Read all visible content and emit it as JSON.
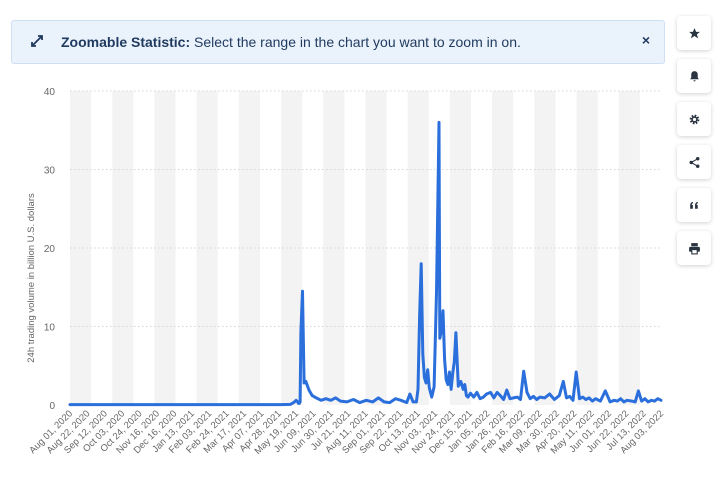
{
  "banner": {
    "title": "Zoomable Statistic:",
    "text": " Select the range in the chart you want to zoom in on.",
    "close_label": "×"
  },
  "toolbar": {
    "icons": [
      "star-icon",
      "bell-icon",
      "gear-icon",
      "share-icon",
      "quote-icon",
      "print-icon"
    ]
  },
  "colors": {
    "line": "#2a6fdb",
    "band": "#f3f3f3",
    "grid": "#d5d5d5",
    "text": "#666666"
  },
  "chart_data": {
    "type": "line",
    "ylabel": "24h trading volume in billion U.S. dollars",
    "xlabel": "",
    "title": "",
    "ylim": [
      0,
      40
    ],
    "yticks": [
      0,
      10,
      20,
      30,
      40
    ],
    "x_start": "2020-08-01",
    "x_end": "2022-08-03",
    "xtick_labels": [
      "Aug 01, 2020",
      "Aug 22, 2020",
      "Sep 12, 2020",
      "Oct 03, 2020",
      "Oct 24, 2020",
      "Nov 16, 2020",
      "Dec 16, 2020",
      "Jan 13, 2021",
      "Feb 03, 2021",
      "Feb 24, 2021",
      "Mar 17, 2021",
      "Apr 07, 2021",
      "Apr 28, 2021",
      "May 19, 2021",
      "Jun 09, 2021",
      "Jun 30, 2021",
      "Jul 21, 2021",
      "Aug 11, 2021",
      "Sep 01, 2021",
      "Sep 22, 2021",
      "Oct 13, 2021",
      "Nov 03, 2021",
      "Nov 24, 2021",
      "Dec 15, 2021",
      "Jan 05, 2022",
      "Jan 26, 2022",
      "Feb 16, 2022",
      "Mar 09, 2022",
      "Mar 30, 2022",
      "Apr 20, 2022",
      "May 11, 2022",
      "Jun 01, 2022",
      "Jun 22, 2022",
      "Jul 13, 2022",
      "Aug 03, 2022"
    ],
    "series": [
      {
        "x": [
          "2020-08-01",
          "2020-10-01",
          "2020-12-01",
          "2021-02-01",
          "2021-04-01",
          "2021-04-20",
          "2021-05-01",
          "2021-05-05",
          "2021-05-08",
          "2021-05-10",
          "2021-05-11",
          "2021-05-12",
          "2021-05-13",
          "2021-05-14",
          "2021-05-16",
          "2021-05-18",
          "2021-05-20",
          "2021-05-24",
          "2021-05-28",
          "2021-06-02",
          "2021-06-08",
          "2021-06-14",
          "2021-06-20",
          "2021-06-26",
          "2021-07-02",
          "2021-07-10",
          "2021-07-18",
          "2021-07-26",
          "2021-08-03",
          "2021-08-11",
          "2021-08-18",
          "2021-08-25",
          "2021-09-01",
          "2021-09-08",
          "2021-09-15",
          "2021-09-22",
          "2021-09-26",
          "2021-09-30",
          "2021-10-04",
          "2021-10-06",
          "2021-10-08",
          "2021-10-10",
          "2021-10-12",
          "2021-10-14",
          "2021-10-16",
          "2021-10-18",
          "2021-10-20",
          "2021-10-23",
          "2021-10-26",
          "2021-10-29",
          "2021-11-01",
          "2021-11-02",
          "2021-11-04",
          "2021-11-06",
          "2021-11-08",
          "2021-11-10",
          "2021-11-12",
          "2021-11-14",
          "2021-11-16",
          "2021-11-18",
          "2021-11-20",
          "2021-11-22",
          "2021-11-25",
          "2021-11-28",
          "2021-12-01",
          "2021-12-03",
          "2021-12-05",
          "2021-12-07",
          "2021-12-10",
          "2021-12-14",
          "2021-12-18",
          "2021-12-22",
          "2021-12-26",
          "2021-12-30",
          "2022-01-04",
          "2022-01-08",
          "2022-01-12",
          "2022-01-16",
          "2022-01-20",
          "2022-01-24",
          "2022-01-28",
          "2022-02-01",
          "2022-02-06",
          "2022-02-10",
          "2022-02-14",
          "2022-02-18",
          "2022-02-22",
          "2022-02-26",
          "2022-03-02",
          "2022-03-06",
          "2022-03-12",
          "2022-03-18",
          "2022-03-24",
          "2022-03-30",
          "2022-04-04",
          "2022-04-08",
          "2022-04-12",
          "2022-04-16",
          "2022-04-20",
          "2022-04-24",
          "2022-04-28",
          "2022-05-02",
          "2022-05-06",
          "2022-05-10",
          "2022-05-14",
          "2022-05-20",
          "2022-05-26",
          "2022-06-01",
          "2022-06-06",
          "2022-06-10",
          "2022-06-14",
          "2022-06-18",
          "2022-06-22",
          "2022-06-28",
          "2022-07-02",
          "2022-07-06",
          "2022-07-10",
          "2022-07-14",
          "2022-07-18",
          "2022-07-22",
          "2022-07-26",
          "2022-07-30",
          "2022-08-03"
        ],
        "y": [
          0.05,
          0.05,
          0.05,
          0.05,
          0.05,
          0.05,
          0.08,
          0.3,
          0.6,
          0.4,
          0.2,
          0.2,
          0.4,
          9.3,
          14.5,
          2.8,
          3.0,
          1.9,
          1.2,
          0.9,
          0.6,
          0.8,
          0.6,
          0.9,
          0.5,
          0.4,
          0.7,
          0.3,
          0.6,
          0.4,
          0.9,
          0.4,
          0.3,
          0.8,
          0.6,
          0.3,
          1.4,
          0.4,
          0.4,
          2.0,
          11.3,
          18.0,
          6.5,
          3.5,
          2.8,
          4.5,
          2.2,
          1.0,
          2.3,
          14.3,
          36.0,
          8.5,
          9.5,
          12.0,
          5.8,
          3.2,
          2.6,
          4.2,
          2.0,
          4.0,
          5.5,
          9.2,
          2.4,
          3.0,
          2.0,
          2.6,
          1.2,
          1.0,
          1.5,
          1.0,
          1.6,
          0.8,
          1.0,
          1.4,
          1.6,
          0.9,
          1.6,
          1.2,
          0.7,
          1.9,
          0.8,
          0.9,
          1.0,
          0.7,
          4.3,
          1.6,
          0.8,
          1.1,
          0.7,
          1.0,
          0.9,
          1.4,
          0.7,
          1.2,
          3.0,
          0.9,
          1.1,
          0.6,
          4.2,
          0.8,
          1.0,
          0.7,
          0.9,
          0.5,
          0.8,
          0.5,
          1.8,
          0.4,
          0.6,
          0.5,
          0.8,
          0.4,
          0.6,
          0.5,
          0.4,
          1.8,
          0.5,
          0.8,
          0.4,
          0.6,
          0.5,
          0.8,
          0.6
        ]
      }
    ],
    "grid": true,
    "legend": "none"
  }
}
